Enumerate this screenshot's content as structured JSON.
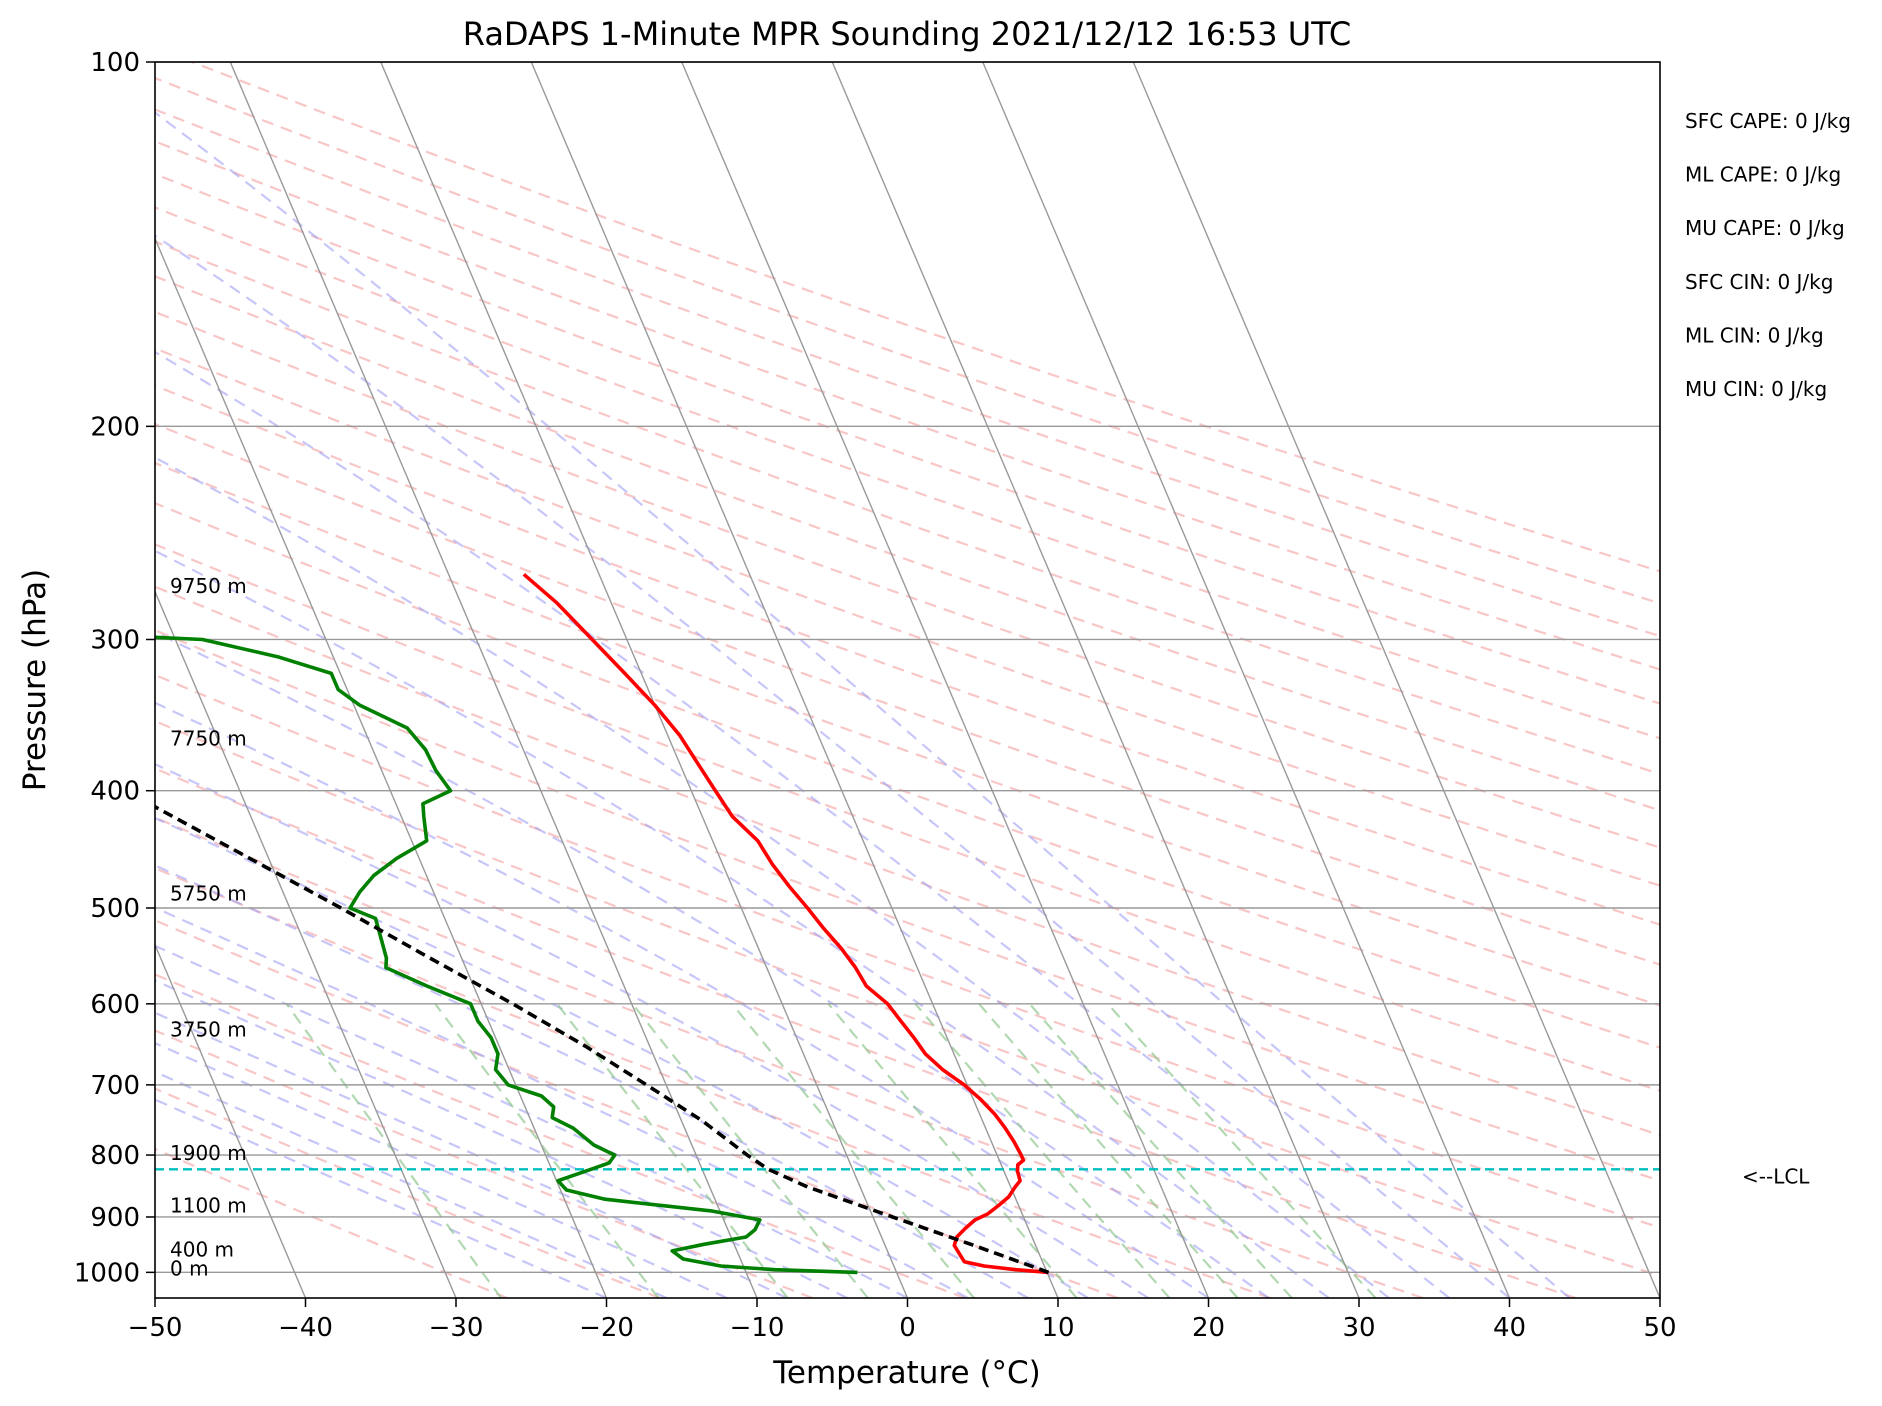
{
  "chart_data": {
    "type": "line",
    "title": "RaDAPS 1-Minute MPR Sounding 2021/12/12 16:53 UTC",
    "xlabel": "Temperature (°C)",
    "ylabel": "Pressure (hPa)",
    "xlim": [
      -50,
      50
    ],
    "ylim": [
      1050,
      100
    ],
    "y_scale": "log",
    "grid": true,
    "x_ticks": [
      "−50",
      "−40",
      "−30",
      "−20",
      "−10",
      "0",
      "10",
      "20",
      "30",
      "40",
      "50"
    ],
    "y_ticks": [
      {
        "p": 100,
        "label": "100"
      },
      {
        "p": 200,
        "label": "200"
      },
      {
        "p": 300,
        "label": "300"
      },
      {
        "p": 400,
        "label": "400"
      },
      {
        "p": 500,
        "label": "500"
      },
      {
        "p": 600,
        "label": "600"
      },
      {
        "p": 700,
        "label": "700"
      },
      {
        "p": 800,
        "label": "800"
      },
      {
        "p": 900,
        "label": "900"
      },
      {
        "p": 1000,
        "label": "1000"
      }
    ],
    "colors": {
      "temperature": "#ff0000",
      "dewpoint": "#008000",
      "parcel": "#000000",
      "lcl": "#00bfbf",
      "dry_adiabat": "#f4a0a0",
      "moist_adiabat": "#a0a0f4",
      "mixing_ratio": "#90c890",
      "isotherm": "#999999"
    },
    "series": [
      {
        "key": "temperature",
        "points": [
          {
            "p": 1000,
            "t": 10.1
          },
          {
            "p": 995,
            "t": 8.0
          },
          {
            "p": 988,
            "t": 6.0
          },
          {
            "p": 980,
            "t": 4.8
          },
          {
            "p": 965,
            "t": 4.7
          },
          {
            "p": 950,
            "t": 4.6
          },
          {
            "p": 935,
            "t": 5.0
          },
          {
            "p": 920,
            "t": 5.8
          },
          {
            "p": 905,
            "t": 6.7
          },
          {
            "p": 895,
            "t": 7.7
          },
          {
            "p": 880,
            "t": 8.7
          },
          {
            "p": 866,
            "t": 9.6
          },
          {
            "p": 850,
            "t": 10.3
          },
          {
            "p": 840,
            "t": 10.8
          },
          {
            "p": 825,
            "t": 10.9
          },
          {
            "p": 815,
            "t": 11.1
          },
          {
            "p": 808,
            "t": 11.6
          },
          {
            "p": 800,
            "t": 11.6
          },
          {
            "p": 780,
            "t": 11.5
          },
          {
            "p": 760,
            "t": 11.3
          },
          {
            "p": 740,
            "t": 11.0
          },
          {
            "p": 720,
            "t": 10.5
          },
          {
            "p": 700,
            "t": 9.8
          },
          {
            "p": 680,
            "t": 8.8
          },
          {
            "p": 660,
            "t": 8.1
          },
          {
            "p": 640,
            "t": 7.8
          },
          {
            "p": 620,
            "t": 7.4
          },
          {
            "p": 600,
            "t": 7.0
          },
          {
            "p": 580,
            "t": 6.1
          },
          {
            "p": 560,
            "t": 5.9
          },
          {
            "p": 540,
            "t": 5.5
          },
          {
            "p": 520,
            "t": 4.9
          },
          {
            "p": 500,
            "t": 4.4
          },
          {
            "p": 480,
            "t": 3.8
          },
          {
            "p": 460,
            "t": 3.3
          },
          {
            "p": 440,
            "t": 3.0
          },
          {
            "p": 420,
            "t": 2.0
          },
          {
            "p": 400,
            "t": 1.6
          },
          {
            "p": 380,
            "t": 1.2
          },
          {
            "p": 360,
            "t": 0.8
          },
          {
            "p": 340,
            "t": 0.0
          },
          {
            "p": 320,
            "t": -1.1
          },
          {
            "p": 300,
            "t": -2.3
          },
          {
            "p": 280,
            "t": -3.6
          },
          {
            "p": 265,
            "t": -5.0
          }
        ]
      },
      {
        "key": "dewpoint",
        "points": [
          {
            "p": 1000,
            "t": -2.6
          },
          {
            "p": 995,
            "t": -8.0
          },
          {
            "p": 988,
            "t": -11.5
          },
          {
            "p": 975,
            "t": -13.8
          },
          {
            "p": 960,
            "t": -14.3
          },
          {
            "p": 948,
            "t": -12.0
          },
          {
            "p": 935,
            "t": -9.0
          },
          {
            "p": 922,
            "t": -8.2
          },
          {
            "p": 905,
            "t": -7.6
          },
          {
            "p": 890,
            "t": -10.5
          },
          {
            "p": 870,
            "t": -17.3
          },
          {
            "p": 855,
            "t": -19.6
          },
          {
            "p": 840,
            "t": -19.9
          },
          {
            "p": 825,
            "t": -17.8
          },
          {
            "p": 812,
            "t": -16.0
          },
          {
            "p": 800,
            "t": -15.4
          },
          {
            "p": 785,
            "t": -16.5
          },
          {
            "p": 760,
            "t": -17.4
          },
          {
            "p": 745,
            "t": -18.5
          },
          {
            "p": 730,
            "t": -18.1
          },
          {
            "p": 715,
            "t": -18.6
          },
          {
            "p": 700,
            "t": -20.5
          },
          {
            "p": 680,
            "t": -20.9
          },
          {
            "p": 660,
            "t": -20.3
          },
          {
            "p": 640,
            "t": -20.3
          },
          {
            "p": 620,
            "t": -20.7
          },
          {
            "p": 600,
            "t": -20.7
          },
          {
            "p": 580,
            "t": -23.1
          },
          {
            "p": 560,
            "t": -25.3
          },
          {
            "p": 550,
            "t": -25.0
          },
          {
            "p": 530,
            "t": -24.8
          },
          {
            "p": 510,
            "t": -24.6
          },
          {
            "p": 500,
            "t": -26.0
          },
          {
            "p": 485,
            "t": -24.9
          },
          {
            "p": 470,
            "t": -23.5
          },
          {
            "p": 455,
            "t": -21.5
          },
          {
            "p": 440,
            "t": -19.0
          },
          {
            "p": 420,
            "t": -18.5
          },
          {
            "p": 410,
            "t": -18.2
          },
          {
            "p": 400,
            "t": -16.0
          },
          {
            "p": 385,
            "t": -16.4
          },
          {
            "p": 370,
            "t": -16.5
          },
          {
            "p": 355,
            "t": -17.1
          },
          {
            "p": 340,
            "t": -19.6
          },
          {
            "p": 330,
            "t": -20.6
          },
          {
            "p": 320,
            "t": -20.6
          },
          {
            "p": 310,
            "t": -23.7
          },
          {
            "p": 300,
            "t": -28.2
          },
          {
            "p": 297,
            "t": -35.6
          },
          {
            "p": 296,
            "t": -45.5
          }
        ]
      },
      {
        "key": "parcel",
        "points": [
          {
            "p": 1000,
            "t": 10.1
          },
          {
            "p": 950,
            "t": 5.9
          },
          {
            "p": 900,
            "t": 1.3
          },
          {
            "p": 850,
            "t": -3.5
          },
          {
            "p": 822,
            "t": -5.6
          },
          {
            "p": 800,
            "t": -6.6
          },
          {
            "p": 750,
            "t": -8.6
          },
          {
            "p": 700,
            "t": -11.3
          },
          {
            "p": 650,
            "t": -14.3
          },
          {
            "p": 600,
            "t": -17.9
          },
          {
            "p": 550,
            "t": -22.1
          },
          {
            "p": 500,
            "t": -26.6
          },
          {
            "p": 450,
            "t": -31.8
          },
          {
            "p": 400,
            "t": -37.6
          },
          {
            "p": 350,
            "t": -44.3
          },
          {
            "p": 300,
            "t": -52.3
          },
          {
            "p": 265,
            "t": -58.1
          }
        ]
      }
    ],
    "lcl": {
      "p": 822,
      "label": "<--LCL"
    },
    "height_labels": [
      {
        "p": 1000,
        "label": "0 m"
      },
      {
        "p": 965,
        "label": "400 m"
      },
      {
        "p": 887,
        "label": "1100 m"
      },
      {
        "p": 803,
        "label": "1900 m"
      },
      {
        "p": 635,
        "label": "3750 m"
      },
      {
        "p": 490,
        "label": "5750 m"
      },
      {
        "p": 365,
        "label": "7750 m"
      },
      {
        "p": 273,
        "label": "9750 m"
      }
    ],
    "annotations": [
      "SFC CAPE: 0 J/kg",
      "ML CAPE: 0 J/kg",
      "MU CAPE: 0 J/kg",
      "SFC CIN: 0 J/kg",
      "ML CIN: 0 J/kg",
      "MU CIN: 0 J/kg"
    ]
  }
}
